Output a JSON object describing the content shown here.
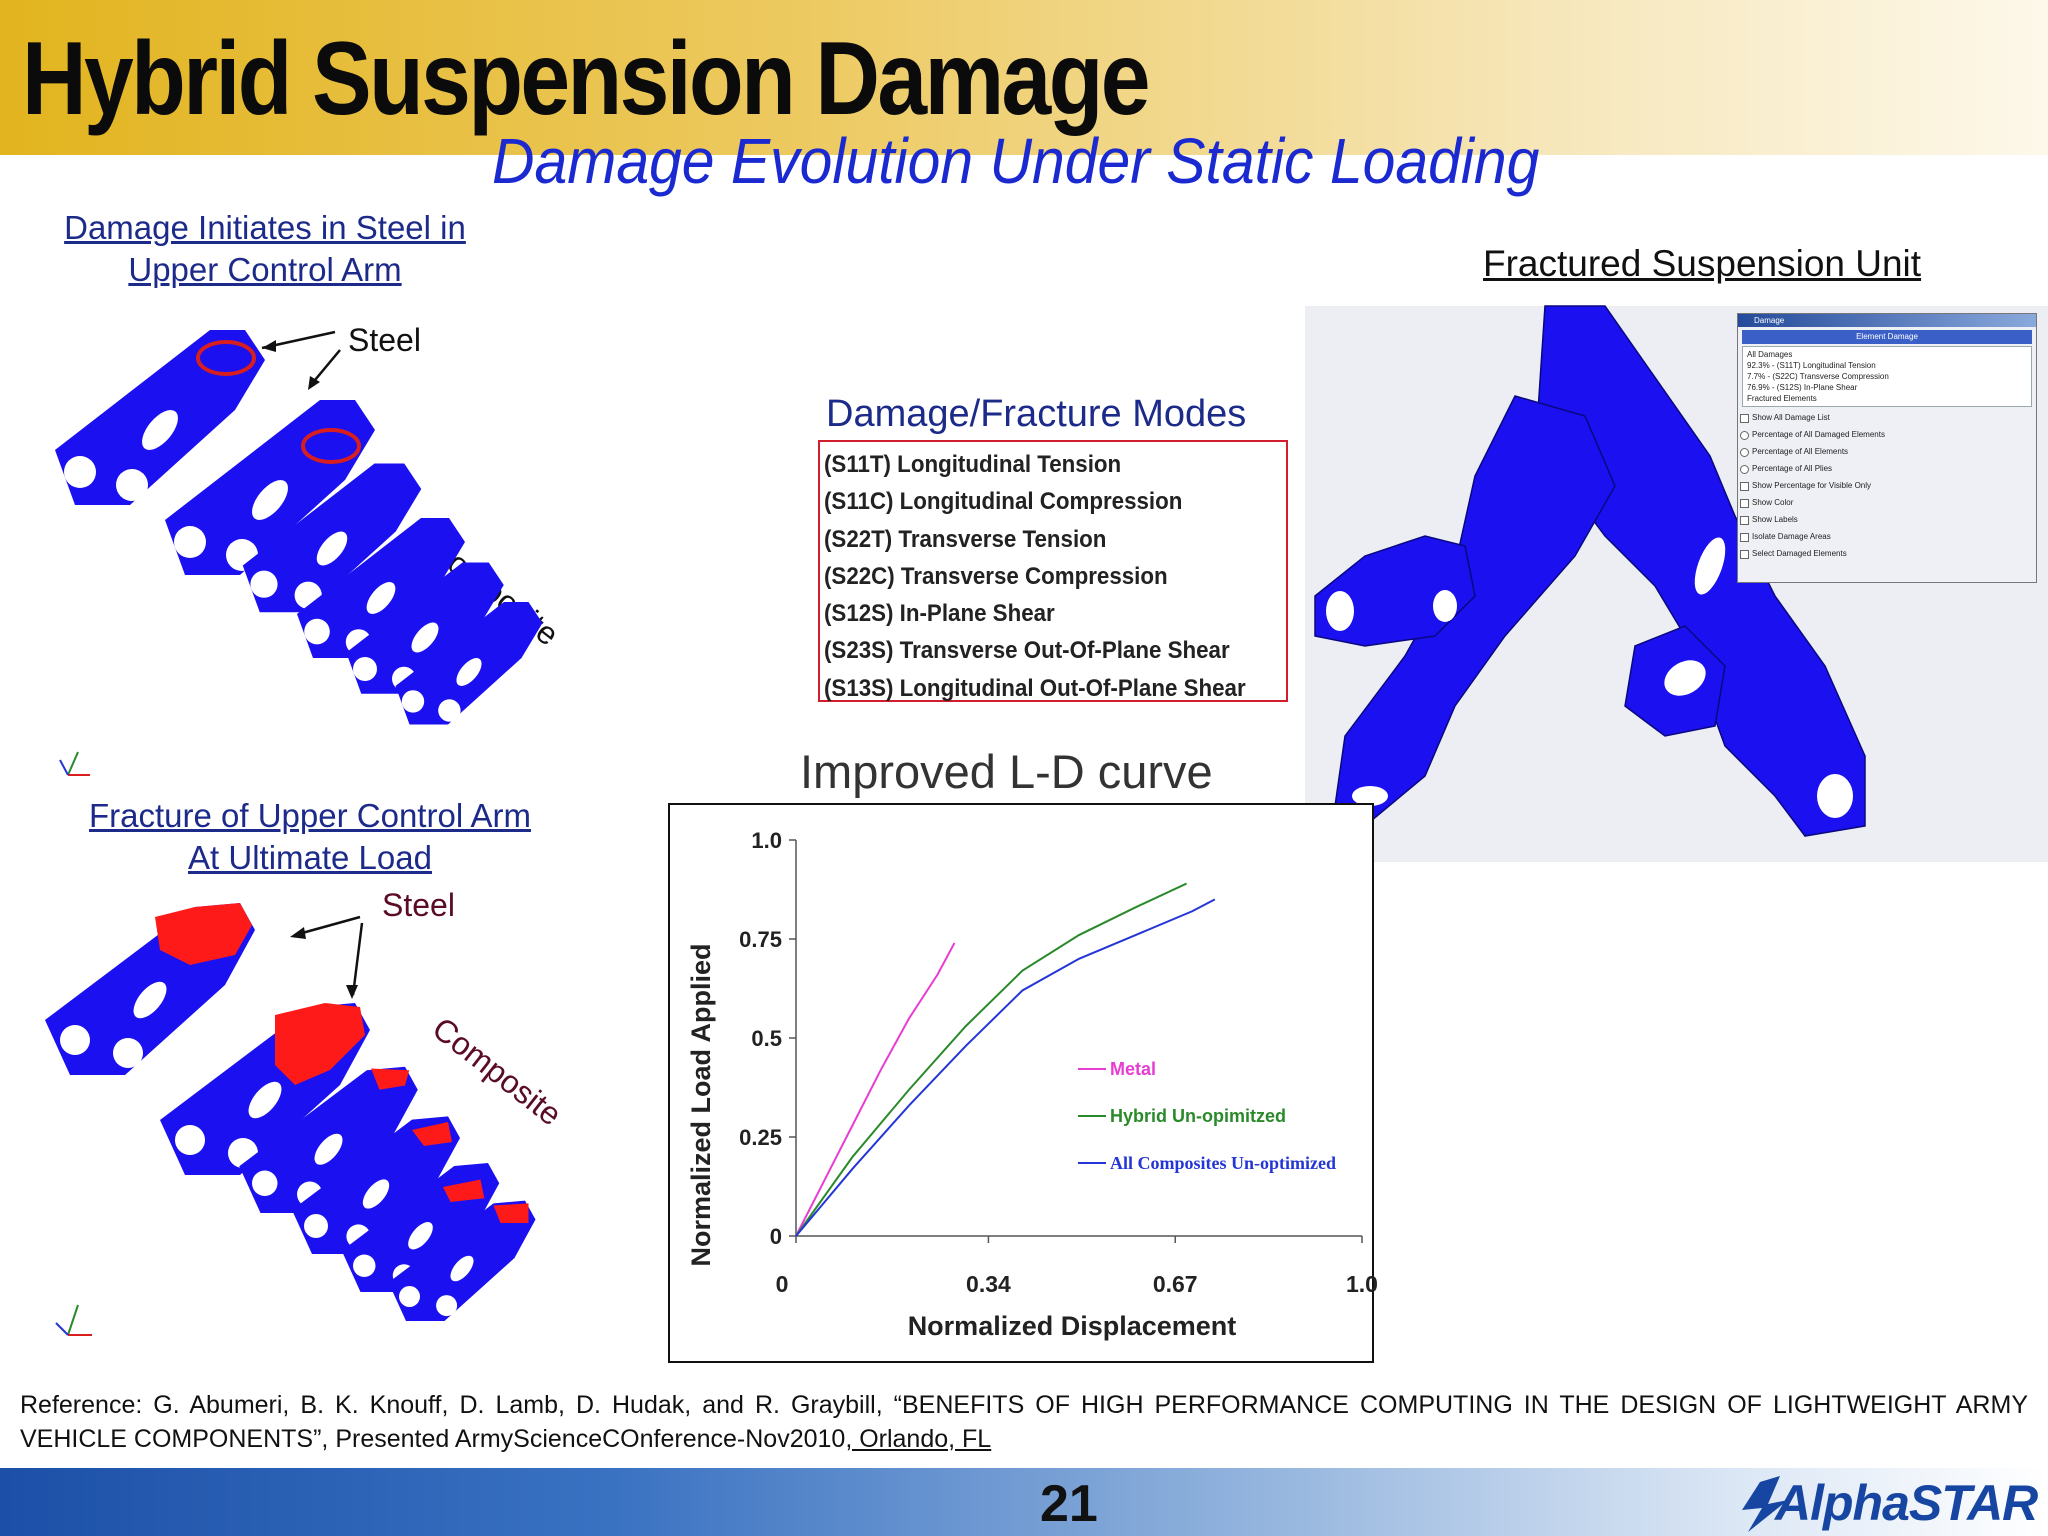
{
  "header": {
    "title": "Hybrid Suspension Damage",
    "subtitle": "Damage Evolution Under Static Loading"
  },
  "left_top": {
    "caption_line1": "Damage Initiates in Steel in",
    "caption_line2": "Upper Control Arm",
    "steel_label": "Steel",
    "composite_label": "Composite"
  },
  "left_bottom": {
    "caption_line1": "Fracture of Upper Control Arm",
    "caption_line2": "At Ultimate Load",
    "steel_label": "Steel",
    "composite_label": "Composite"
  },
  "right": {
    "caption": "Fractured Suspension Unit",
    "dialog": {
      "window_title": "Damage",
      "header": "Element Damage",
      "damage_lines": [
        "All Damages",
        "92.3% - (S11T) Longitudinal Tension",
        "7.7% - (S22C) Transverse Compression",
        "76.9% - (S12S) In-Plane Shear",
        "Fractured Elements"
      ],
      "options": [
        {
          "label": "Show All Damage List",
          "kind": "check"
        },
        {
          "label": "Percentage of All Damaged Elements",
          "kind": "radio"
        },
        {
          "label": "Percentage of All Elements",
          "kind": "radio"
        },
        {
          "label": "Percentage of All Plies",
          "kind": "radio"
        },
        {
          "label": "Show Percentage for Visible Only",
          "kind": "check"
        },
        {
          "label": "Show Color",
          "kind": "check"
        },
        {
          "label": "Show Labels",
          "kind": "check"
        },
        {
          "label": "Isolate Damage Areas",
          "kind": "check"
        },
        {
          "label": "Select Damaged Elements",
          "kind": "check"
        }
      ]
    }
  },
  "modes": {
    "title": "Damage/Fracture Modes",
    "items": [
      "(S11T) Longitudinal Tension",
      "(S11C) Longitudinal Compression",
      "(S22T) Transverse Tension",
      "(S22C) Transverse Compression",
      "(S12S) In-Plane Shear",
      "(S23S) Transverse Out-Of-Plane Shear",
      "(S13S) Longitudinal Out-Of-Plane Shear"
    ]
  },
  "curve": {
    "title": "Improved L-D curve"
  },
  "chart_data": {
    "type": "line",
    "title": "",
    "xlabel": "Normalized Displacement",
    "ylabel": "Normalized Load Applied",
    "xlim": [
      0,
      1.0
    ],
    "ylim": [
      0,
      1.0
    ],
    "x_ticks": [
      "0",
      "0.34",
      "0.67",
      "1.0"
    ],
    "y_ticks": [
      "0",
      "0.25",
      "0.5",
      "0.75",
      "1.0"
    ],
    "x_tick_values": [
      0,
      0.34,
      0.67,
      1.0
    ],
    "y_tick_values": [
      0,
      0.25,
      0.5,
      0.75,
      1.0
    ],
    "legend_position": "right",
    "series": [
      {
        "name": "Metal",
        "color": "#e83cd2",
        "x": [
          0,
          0.05,
          0.1,
          0.15,
          0.2,
          0.25,
          0.28
        ],
        "y": [
          0,
          0.14,
          0.28,
          0.42,
          0.55,
          0.66,
          0.74
        ]
      },
      {
        "name": "Hybrid Un-opimitzed",
        "color": "#2a8a2a",
        "x": [
          0,
          0.1,
          0.2,
          0.3,
          0.4,
          0.5,
          0.6,
          0.69
        ],
        "y": [
          0,
          0.2,
          0.37,
          0.53,
          0.67,
          0.76,
          0.83,
          0.89
        ]
      },
      {
        "name": "All Composites Un-optimized",
        "color": "#2436d6",
        "x": [
          0,
          0.1,
          0.2,
          0.3,
          0.4,
          0.5,
          0.6,
          0.7,
          0.74
        ],
        "y": [
          0,
          0.17,
          0.33,
          0.48,
          0.62,
          0.7,
          0.76,
          0.82,
          0.85
        ]
      }
    ]
  },
  "reference": {
    "text": "Reference: G. Abumeri, B. K. Knouff, D. Lamb, D. Hudak, and R. Graybill, “BENEFITS OF HIGH PERFORMANCE COMPUTING IN THE DESIGN OF LIGHTWEIGHT ARMY VEHICLE COMPONENTS”,  Presented ArmyScienceCOnference-Nov2010",
    "location": ", Orlando, FL"
  },
  "footer": {
    "page_number": "21",
    "logo": "AlphaSTAR"
  },
  "colors": {
    "part_blue": "#1a10f0",
    "damage_red": "#ff1a1a",
    "caption_blue": "#1c2a8a",
    "subtitle_blue": "#1a2ad0"
  }
}
